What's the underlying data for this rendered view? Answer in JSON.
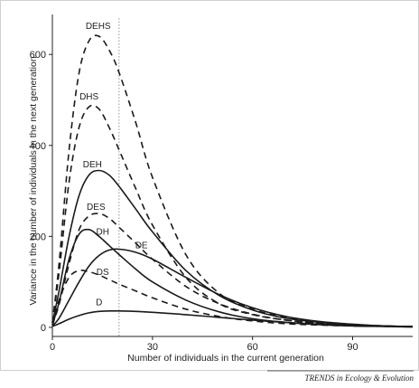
{
  "chart_data": {
    "type": "line",
    "xlabel": "Number of individuals in the current generation",
    "ylabel": "Variance in the number of individuals in the next generation",
    "xlim": [
      0,
      108
    ],
    "ylim": [
      -20,
      680
    ],
    "xticks": [
      0,
      30,
      60,
      90
    ],
    "yticks": [
      0,
      200,
      400,
      600
    ],
    "reference_line": {
      "x": 20,
      "style": "dotted"
    },
    "series": [
      {
        "name": "DEHS",
        "dash": "dashed",
        "x": [
          0,
          2,
          5,
          8,
          11,
          14,
          17,
          20,
          25,
          30,
          40,
          50,
          60,
          70,
          80,
          90,
          100,
          108
        ],
        "y": [
          10,
          140,
          390,
          560,
          630,
          640,
          610,
          560,
          450,
          330,
          160,
          75,
          40,
          22,
          12,
          6,
          3,
          2
        ]
      },
      {
        "name": "DHS",
        "dash": "dashed",
        "x": [
          0,
          2,
          5,
          8,
          11,
          14,
          17,
          20,
          25,
          30,
          40,
          50,
          60,
          70,
          80,
          90,
          100,
          108
        ],
        "y": [
          10,
          120,
          320,
          440,
          485,
          480,
          440,
          390,
          305,
          225,
          110,
          52,
          28,
          16,
          9,
          5,
          2,
          1
        ]
      },
      {
        "name": "DEH",
        "dash": "solid",
        "x": [
          0,
          2,
          5,
          8,
          11,
          14,
          17,
          20,
          25,
          30,
          40,
          50,
          60,
          70,
          80,
          90,
          100,
          108
        ],
        "y": [
          10,
          80,
          200,
          290,
          335,
          345,
          335,
          310,
          260,
          210,
          125,
          70,
          38,
          20,
          11,
          6,
          3,
          2
        ]
      },
      {
        "name": "DES",
        "dash": "dashed",
        "x": [
          0,
          2,
          5,
          8,
          11,
          14,
          17,
          20,
          25,
          30,
          40,
          50,
          60,
          70,
          80,
          90,
          100,
          108
        ],
        "y": [
          5,
          50,
          140,
          215,
          245,
          250,
          240,
          220,
          185,
          150,
          90,
          52,
          29,
          16,
          9,
          5,
          2,
          1
        ]
      },
      {
        "name": "DH",
        "dash": "solid",
        "x": [
          0,
          2,
          5,
          8,
          11,
          14,
          17,
          20,
          25,
          30,
          40,
          50,
          60,
          70,
          80,
          90,
          100,
          108
        ],
        "y": [
          5,
          55,
          150,
          205,
          215,
          200,
          180,
          160,
          128,
          100,
          60,
          34,
          19,
          11,
          6,
          3,
          2,
          1
        ]
      },
      {
        "name": "DE",
        "dash": "solid",
        "x": [
          0,
          2,
          5,
          8,
          11,
          14,
          17,
          20,
          25,
          30,
          40,
          50,
          60,
          70,
          80,
          90,
          100,
          108
        ],
        "y": [
          3,
          20,
          60,
          100,
          135,
          158,
          170,
          172,
          165,
          150,
          110,
          72,
          43,
          24,
          13,
          7,
          3,
          2
        ]
      },
      {
        "name": "DS",
        "dash": "dashed",
        "x": [
          0,
          2,
          5,
          8,
          11,
          14,
          17,
          20,
          25,
          30,
          40,
          50,
          60,
          70,
          80,
          90,
          100,
          108
        ],
        "y": [
          5,
          60,
          110,
          125,
          122,
          115,
          105,
          95,
          80,
          65,
          40,
          24,
          14,
          8,
          5,
          3,
          2,
          1
        ]
      },
      {
        "name": "D",
        "dash": "solid",
        "x": [
          0,
          2,
          5,
          8,
          11,
          14,
          17,
          20,
          25,
          30,
          40,
          50,
          60,
          70,
          80,
          90,
          100,
          108
        ],
        "y": [
          2,
          8,
          18,
          26,
          32,
          35,
          36,
          36,
          35,
          33,
          28,
          22,
          16,
          11,
          7,
          5,
          3,
          2
        ]
      }
    ]
  },
  "source_note": "TRENDS in Ecology & Evolution"
}
